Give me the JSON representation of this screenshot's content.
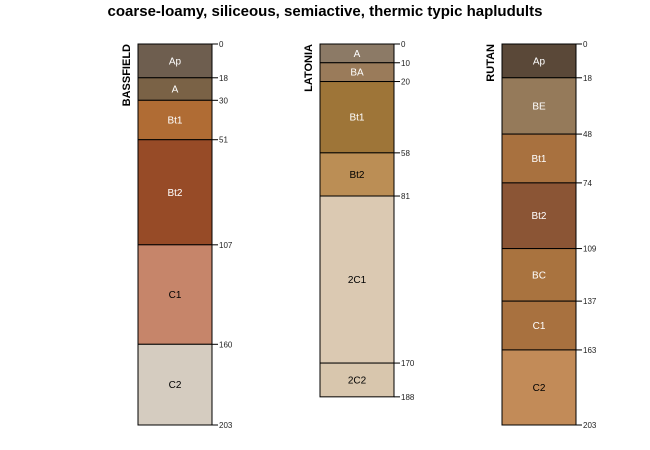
{
  "chart_data": {
    "type": "soil-profile",
    "title": "coarse-loamy, siliceous, semiactive, thermic typic hapludults",
    "depth_unit": "cm",
    "ylim": [
      0,
      203
    ],
    "profiles": [
      {
        "name": "BASSFIELD",
        "horizons": [
          {
            "name": "Ap",
            "top": 0,
            "bottom": 18,
            "color": "#6e5e4f",
            "text_color": "#ffffff"
          },
          {
            "name": "A",
            "top": 18,
            "bottom": 30,
            "color": "#7a6246",
            "text_color": "#ffffff"
          },
          {
            "name": "Bt1",
            "top": 30,
            "bottom": 51,
            "color": "#b06c34",
            "text_color": "#ffffff"
          },
          {
            "name": "Bt2",
            "top": 51,
            "bottom": 107,
            "color": "#974b27",
            "text_color": "#ffffff"
          },
          {
            "name": "C1",
            "top": 107,
            "bottom": 160,
            "color": "#c6856a",
            "text_color": "#000000"
          },
          {
            "name": "C2",
            "top": 160,
            "bottom": 203,
            "color": "#d5ccc0",
            "text_color": "#000000"
          }
        ]
      },
      {
        "name": "LATONIA",
        "horizons": [
          {
            "name": "A",
            "top": 0,
            "bottom": 10,
            "color": "#8c7a66",
            "text_color": "#ffffff"
          },
          {
            "name": "BA",
            "top": 10,
            "bottom": 20,
            "color": "#9a7b5a",
            "text_color": "#ffffff"
          },
          {
            "name": "Bt1",
            "top": 20,
            "bottom": 58,
            "color": "#9e7538",
            "text_color": "#ffffff"
          },
          {
            "name": "Bt2",
            "top": 58,
            "bottom": 81,
            "color": "#bb8e55",
            "text_color": "#000000"
          },
          {
            "name": "2C1",
            "top": 81,
            "bottom": 170,
            "color": "#dbc9b2",
            "text_color": "#000000"
          },
          {
            "name": "2C2",
            "top": 170,
            "bottom": 188,
            "color": "#d8c6ad",
            "text_color": "#000000"
          }
        ]
      },
      {
        "name": "RUTAN",
        "horizons": [
          {
            "name": "Ap",
            "top": 0,
            "bottom": 18,
            "color": "#5a4838",
            "text_color": "#ffffff"
          },
          {
            "name": "BE",
            "top": 18,
            "bottom": 48,
            "color": "#957a5a",
            "text_color": "#ffffff"
          },
          {
            "name": "Bt1",
            "top": 48,
            "bottom": 74,
            "color": "#a8713f",
            "text_color": "#ffffff"
          },
          {
            "name": "Bt2",
            "top": 74,
            "bottom": 109,
            "color": "#8b5535",
            "text_color": "#ffffff"
          },
          {
            "name": "BC",
            "top": 109,
            "bottom": 137,
            "color": "#a9733f",
            "text_color": "#ffffff"
          },
          {
            "name": "C1",
            "top": 137,
            "bottom": 163,
            "color": "#a8713f",
            "text_color": "#ffffff"
          },
          {
            "name": "C2",
            "top": 163,
            "bottom": 203,
            "color": "#c28b58",
            "text_color": "#000000"
          }
        ]
      }
    ]
  }
}
